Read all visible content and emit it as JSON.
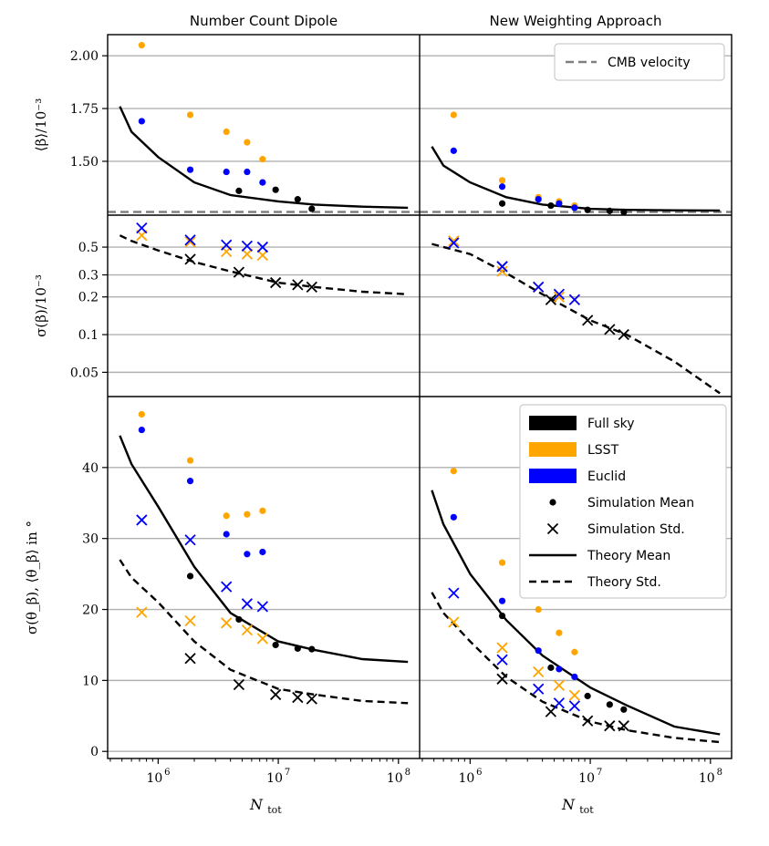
{
  "figure": {
    "col_titles": [
      "Number Count Dipole",
      "New Weighting Approach"
    ],
    "xlabel": "N",
    "xlabel_sub": "tot",
    "x_ticks": [
      {
        "value": 1000000,
        "label": "10",
        "exp": "6"
      },
      {
        "value": 10000000,
        "label": "10",
        "exp": "7"
      },
      {
        "value": 100000000,
        "label": "10",
        "exp": "8"
      }
    ],
    "xlim": [
      380000,
      150000000
    ],
    "x_scale": "log",
    "colors": {
      "full_sky": "#000000",
      "lsst": "#FFA500",
      "euclid": "#0000FF",
      "cmb": "#808080",
      "grid": "#b0b0b0"
    }
  },
  "legend_top": {
    "label": "CMB velocity"
  },
  "legend_bottom": {
    "entries": [
      {
        "label": "Full sky",
        "kind": "patch",
        "color": "#000000"
      },
      {
        "label": "LSST",
        "kind": "patch",
        "color": "#FFA500"
      },
      {
        "label": "Euclid",
        "kind": "patch",
        "color": "#0000FF"
      },
      {
        "label": "Simulation Mean",
        "kind": "dot",
        "color": "#000000"
      },
      {
        "label": "Simulation Std.",
        "kind": "cross",
        "color": "#000000"
      },
      {
        "label": "Theory Mean",
        "kind": "solid",
        "color": "#000000"
      },
      {
        "label": "Theory Std.",
        "kind": "dashed",
        "color": "#000000"
      }
    ]
  },
  "rows": [
    {
      "ylabel": "⟨β⟩/10⁻³",
      "y_scale": "linear",
      "ylim": [
        1.245,
        2.1
      ],
      "y_ticks": [
        {
          "value": 1.5,
          "label": "1.50"
        },
        {
          "value": 1.75,
          "label": "1.75"
        },
        {
          "value": 2.0,
          "label": "2.00"
        }
      ]
    },
    {
      "ylabel": "σ(β)/10⁻³",
      "y_scale": "log",
      "ylim": [
        0.032,
        0.9
      ],
      "y_ticks": [
        {
          "value": 0.05,
          "label": "0.05"
        },
        {
          "value": 0.1,
          "label": "0.1"
        },
        {
          "value": 0.2,
          "label": "0.2"
        },
        {
          "value": 0.3,
          "label": "0.3"
        },
        {
          "value": 0.5,
          "label": "0.5"
        }
      ]
    },
    {
      "ylabel": "σ(θ_β), ⟨θ_β⟩ in °",
      "y_scale": "linear",
      "ylim": [
        -1,
        50
      ],
      "y_ticks": [
        {
          "value": 0,
          "label": "0"
        },
        {
          "value": 10,
          "label": "10"
        },
        {
          "value": 20,
          "label": "20"
        },
        {
          "value": 30,
          "label": "30"
        },
        {
          "value": 40,
          "label": "40"
        }
      ]
    }
  ],
  "chart_data": [
    {
      "type": "scatter",
      "title": "Number Count Dipole",
      "ylabel": "⟨β⟩/10⁻³",
      "hline": {
        "name": "CMB velocity",
        "y": 1.26,
        "style": "dashed"
      },
      "series": [
        {
          "kind": "line",
          "x": [
            480000,
            600000,
            1000000,
            2000000,
            4000000,
            10000000,
            20000000,
            50000000,
            120000000
          ],
          "y": [
            1.76,
            1.64,
            1.52,
            1.4,
            1.34,
            1.31,
            1.295,
            1.285,
            1.28
          ]
        },
        {
          "kind": "dots",
          "group": "full_sky",
          "x": [
            4700000,
            9500000,
            14500000,
            19000000
          ],
          "y": [
            1.36,
            1.365,
            1.32,
            1.275
          ]
        },
        {
          "kind": "dots",
          "group": "lsst",
          "x": [
            730000,
            1850000,
            3700000,
            5500000,
            7400000
          ],
          "y": [
            2.05,
            1.72,
            1.64,
            1.59,
            1.51
          ]
        },
        {
          "kind": "dots",
          "group": "euclid",
          "x": [
            730000,
            1850000,
            3700000,
            5500000,
            7400000
          ],
          "y": [
            1.69,
            1.46,
            1.45,
            1.45,
            1.4
          ]
        }
      ]
    },
    {
      "type": "scatter",
      "title": "New Weighting Approach",
      "ylabel": "⟨β⟩/10⁻³",
      "hline": {
        "name": "CMB velocity",
        "y": 1.26,
        "style": "dashed"
      },
      "series": [
        {
          "kind": "line",
          "x": [
            480000,
            600000,
            1000000,
            2000000,
            4000000,
            10000000,
            20000000,
            50000000,
            120000000
          ],
          "y": [
            1.57,
            1.48,
            1.4,
            1.33,
            1.295,
            1.275,
            1.27,
            1.268,
            1.267
          ]
        },
        {
          "kind": "dots",
          "group": "full_sky",
          "x": [
            1850000,
            4700000,
            9500000,
            14500000,
            19000000
          ],
          "y": [
            1.3,
            1.29,
            1.27,
            1.265,
            1.26
          ]
        },
        {
          "kind": "dots",
          "group": "lsst",
          "x": [
            730000,
            1850000,
            3700000,
            5500000,
            7400000
          ],
          "y": [
            1.72,
            1.41,
            1.33,
            1.31,
            1.29
          ]
        },
        {
          "kind": "dots",
          "group": "euclid",
          "x": [
            730000,
            1850000,
            3700000,
            5500000,
            7400000
          ],
          "y": [
            1.55,
            1.38,
            1.32,
            1.3,
            1.28
          ]
        }
      ]
    },
    {
      "type": "scatter",
      "title": "Number Count Dipole",
      "ylabel": "σ(β)/10⁻³",
      "series": [
        {
          "kind": "dashed",
          "x": [
            480000,
            600000,
            1000000,
            2000000,
            4000000,
            10000000,
            20000000,
            50000000,
            120000000
          ],
          "y": [
            0.62,
            0.56,
            0.47,
            0.38,
            0.32,
            0.26,
            0.24,
            0.22,
            0.21
          ]
        },
        {
          "kind": "crosses",
          "group": "full_sky",
          "x": [
            1850000,
            4700000,
            9500000,
            14500000,
            19000000
          ],
          "y": [
            0.4,
            0.315,
            0.26,
            0.25,
            0.24
          ]
        },
        {
          "kind": "crosses",
          "group": "lsst",
          "x": [
            730000,
            1850000,
            3700000,
            5500000,
            7400000
          ],
          "y": [
            0.62,
            0.55,
            0.46,
            0.44,
            0.43
          ]
        },
        {
          "kind": "crosses",
          "group": "euclid",
          "x": [
            730000,
            1850000,
            3700000,
            5500000,
            7400000
          ],
          "y": [
            0.71,
            0.57,
            0.52,
            0.51,
            0.5
          ]
        }
      ]
    },
    {
      "type": "scatter",
      "title": "New Weighting Approach",
      "ylabel": "σ(β)/10⁻³",
      "series": [
        {
          "kind": "dashed",
          "x": [
            480000,
            1000000,
            2000000,
            4000000,
            10000000,
            20000000,
            50000000,
            120000000
          ],
          "y": [
            0.53,
            0.44,
            0.31,
            0.21,
            0.13,
            0.1,
            0.061,
            0.034
          ]
        },
        {
          "kind": "crosses",
          "group": "full_sky",
          "x": [
            1850000,
            4700000,
            9500000,
            14500000,
            19000000
          ],
          "y": [
            0.35,
            0.19,
            0.13,
            0.11,
            0.1
          ]
        },
        {
          "kind": "crosses",
          "group": "lsst",
          "x": [
            730000,
            1850000,
            3700000,
            5500000,
            7400000
          ],
          "y": [
            0.56,
            0.32,
            0.24,
            0.2,
            0.19
          ]
        },
        {
          "kind": "crosses",
          "group": "euclid",
          "x": [
            730000,
            1850000,
            3700000,
            5500000,
            7400000
          ],
          "y": [
            0.54,
            0.35,
            0.24,
            0.21,
            0.19
          ]
        }
      ]
    },
    {
      "type": "scatter",
      "title": "Number Count Dipole",
      "ylabel": "σ(θ_β), ⟨θ_β⟩ in °",
      "series": [
        {
          "kind": "line",
          "x": [
            480000,
            600000,
            1000000,
            2000000,
            4000000,
            10000000,
            20000000,
            50000000,
            120000000
          ],
          "y": [
            44.5,
            40.5,
            34.5,
            26,
            19.5,
            15.5,
            14.3,
            13.0,
            12.6
          ]
        },
        {
          "kind": "dashed",
          "x": [
            480000,
            600000,
            1000000,
            2000000,
            4000000,
            10000000,
            20000000,
            50000000,
            120000000
          ],
          "y": [
            27,
            24.5,
            21,
            15.5,
            11.5,
            8.8,
            8.0,
            7.1,
            6.8
          ]
        },
        {
          "kind": "dots",
          "group": "full_sky",
          "x": [
            1850000,
            4700000,
            9500000,
            14500000,
            19000000
          ],
          "y": [
            24.7,
            18.6,
            15.0,
            14.5,
            14.4
          ]
        },
        {
          "kind": "dots",
          "group": "lsst",
          "x": [
            730000,
            1850000,
            3700000,
            5500000,
            7400000
          ],
          "y": [
            47.5,
            41.0,
            33.2,
            33.4,
            33.9
          ]
        },
        {
          "kind": "dots",
          "group": "euclid",
          "x": [
            730000,
            1850000,
            3700000,
            5500000,
            7400000
          ],
          "y": [
            45.3,
            38.1,
            30.6,
            27.8,
            28.1
          ]
        },
        {
          "kind": "crosses",
          "group": "full_sky",
          "x": [
            1850000,
            4700000,
            9500000,
            14500000,
            19000000
          ],
          "y": [
            13.1,
            9.4,
            8.0,
            7.6,
            7.4
          ]
        },
        {
          "kind": "crosses",
          "group": "lsst",
          "x": [
            730000,
            1850000,
            3700000,
            5500000,
            7400000
          ],
          "y": [
            19.6,
            18.4,
            18.1,
            17.1,
            15.9
          ]
        },
        {
          "kind": "crosses",
          "group": "euclid",
          "x": [
            730000,
            1850000,
            3700000,
            5500000,
            7400000
          ],
          "y": [
            32.6,
            29.8,
            23.2,
            20.8,
            20.4
          ]
        }
      ]
    },
    {
      "type": "scatter",
      "title": "New Weighting Approach",
      "ylabel": "σ(θ_β), ⟨θ_β⟩ in °",
      "series": [
        {
          "kind": "line",
          "x": [
            480000,
            600000,
            1000000,
            2000000,
            4000000,
            10000000,
            20000000,
            50000000,
            120000000
          ],
          "y": [
            36.8,
            32,
            25,
            18.5,
            13.5,
            9,
            6.5,
            3.5,
            2.4
          ]
        },
        {
          "kind": "dashed",
          "x": [
            480000,
            600000,
            1000000,
            2000000,
            4000000,
            10000000,
            20000000,
            50000000,
            120000000
          ],
          "y": [
            22.4,
            19.5,
            15.5,
            10.5,
            7,
            4.2,
            3.0,
            1.9,
            1.3
          ]
        },
        {
          "kind": "dots",
          "group": "full_sky",
          "x": [
            1850000,
            4700000,
            9500000,
            14500000,
            19000000
          ],
          "y": [
            19.1,
            11.8,
            7.8,
            6.6,
            5.9
          ]
        },
        {
          "kind": "dots",
          "group": "lsst",
          "x": [
            730000,
            1850000,
            3700000,
            5500000,
            7400000
          ],
          "y": [
            39.5,
            26.6,
            20.0,
            16.7,
            14.0
          ]
        },
        {
          "kind": "dots",
          "group": "euclid",
          "x": [
            730000,
            1850000,
            3700000,
            5500000,
            7400000
          ],
          "y": [
            33.0,
            21.2,
            14.2,
            11.6,
            10.5
          ]
        },
        {
          "kind": "crosses",
          "group": "full_sky",
          "x": [
            1850000,
            4700000,
            9500000,
            14500000,
            19000000
          ],
          "y": [
            10.2,
            5.6,
            4.3,
            3.6,
            3.6
          ]
        },
        {
          "kind": "crosses",
          "group": "lsst",
          "x": [
            730000,
            1850000,
            3700000,
            5500000,
            7400000
          ],
          "y": [
            18.2,
            14.6,
            11.2,
            9.3,
            7.9
          ]
        },
        {
          "kind": "crosses",
          "group": "euclid",
          "x": [
            730000,
            1850000,
            3700000,
            5500000,
            7400000
          ],
          "y": [
            22.3,
            12.9,
            8.8,
            6.8,
            6.4
          ]
        }
      ]
    }
  ]
}
